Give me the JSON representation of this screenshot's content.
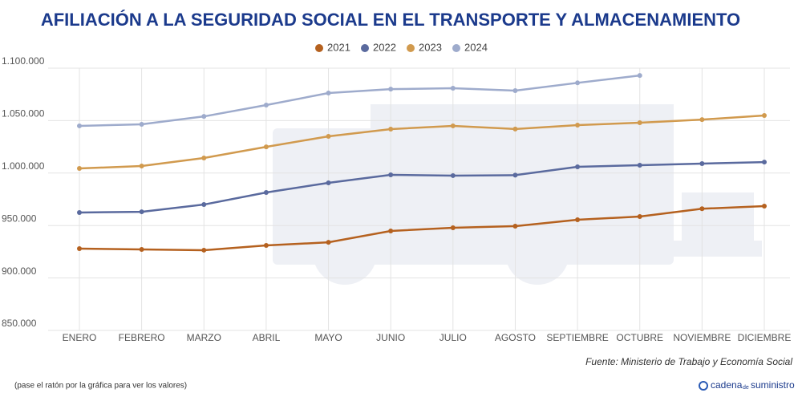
{
  "chart_data": {
    "type": "line",
    "title": "AFILIACIÓN A LA SEGURIDAD SOCIAL EN EL TRANSPORTE Y ALMACENAMIENTO",
    "categories": [
      "ENERO",
      "FEBRERO",
      "MARZO",
      "ABRIL",
      "MAYO",
      "JUNIO",
      "JULIO",
      "AGOSTO",
      "SEPTIEMBRE",
      "OCTUBRE",
      "NOVIEMBRE",
      "DICIEMBRE"
    ],
    "series": [
      {
        "name": "2021",
        "color": "#b5611f",
        "values": [
          928000,
          927200,
          926500,
          931000,
          934000,
          944800,
          947900,
          949400,
          955500,
          958600,
          966000,
          968500
        ]
      },
      {
        "name": "2022",
        "color": "#5a6a9e",
        "values": [
          962400,
          963100,
          970000,
          981500,
          990700,
          998300,
          997600,
          998000,
          1006000,
          1007500,
          1009000,
          1010500
        ]
      },
      {
        "name": "2023",
        "color": "#d19a4e",
        "values": [
          1004400,
          1006700,
          1014400,
          1025000,
          1035000,
          1041900,
          1045000,
          1042000,
          1045700,
          1048000,
          1051000,
          1054900
        ]
      },
      {
        "name": "2024",
        "color": "#9eabcc",
        "values": [
          1045000,
          1046500,
          1054000,
          1064800,
          1076300,
          1080000,
          1080900,
          1078600,
          1086000,
          1093000,
          null,
          null
        ]
      }
    ],
    "ylim": [
      850000,
      1100000
    ],
    "yticks": [
      {
        "value": 850000,
        "label": "850.000"
      },
      {
        "value": 900000,
        "label": "900.000"
      },
      {
        "value": 950000,
        "label": "950.000"
      },
      {
        "value": 1000000,
        "label": "1.000.000"
      },
      {
        "value": 1050000,
        "label": "1.050.000"
      },
      {
        "value": 1100000,
        "label": "1.100.000"
      }
    ],
    "grid": true,
    "legend": "top",
    "source": "Fuente: Ministerio de Trabajo y Economía Social",
    "note": "(pase el ratón por la gráfica para ver los valores)",
    "brand": {
      "name": "cadena",
      "de": "de",
      "suffix": "suministro"
    }
  }
}
